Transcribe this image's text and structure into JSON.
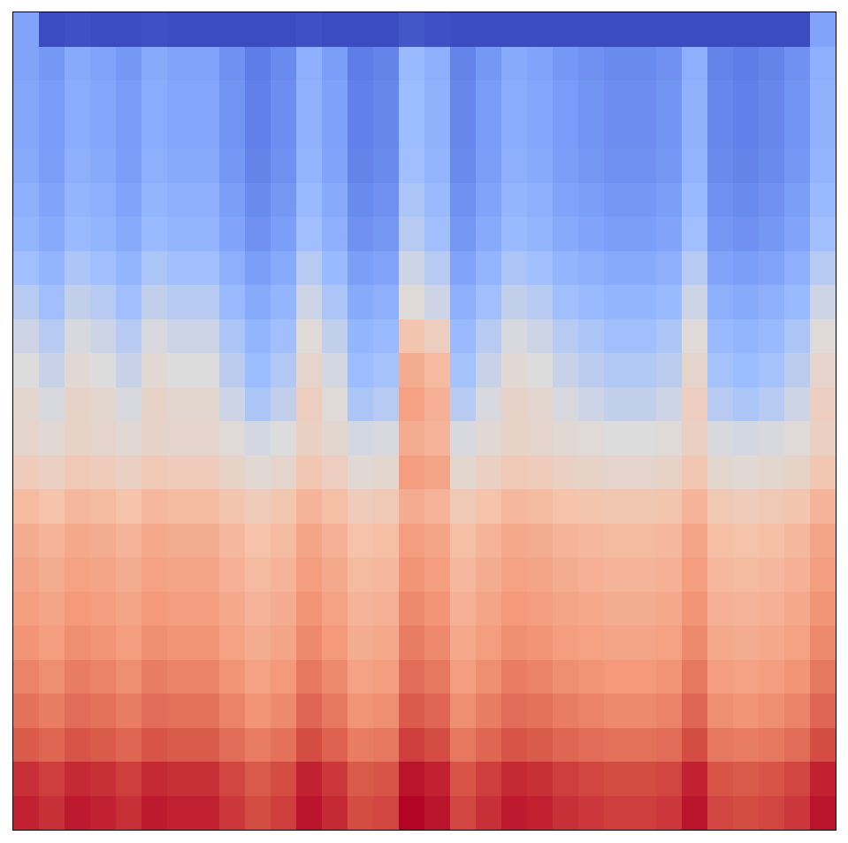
{
  "chart_data": {
    "type": "heatmap",
    "tick_labels": false,
    "z": [
      [
        93,
        91,
        94,
        93,
        91,
        94,
        93,
        93,
        90,
        87,
        89,
        95,
        92,
        87,
        88,
        97,
        95,
        88,
        91,
        94,
        93,
        91,
        90,
        89,
        89,
        90,
        95,
        88,
        87,
        88,
        90,
        95
      ],
      [
        91,
        89,
        92,
        91,
        89,
        92,
        91,
        91,
        88,
        85,
        87,
        93,
        90,
        85,
        86,
        95,
        93,
        86,
        89,
        92,
        91,
        89,
        88,
        87,
        87,
        88,
        93,
        86,
        85,
        86,
        88,
        93
      ],
      [
        85,
        83,
        86,
        85,
        83,
        86,
        85,
        85,
        82,
        79,
        81,
        87,
        84,
        79,
        80,
        89,
        87,
        80,
        83,
        86,
        85,
        83,
        82,
        81,
        81,
        82,
        87,
        80,
        79,
        80,
        82,
        87
      ],
      [
        81,
        79,
        82,
        81,
        79,
        82,
        81,
        81,
        78,
        75,
        77,
        83,
        80,
        75,
        76,
        85,
        83,
        76,
        79,
        82,
        81,
        79,
        78,
        77,
        77,
        78,
        83,
        76,
        75,
        76,
        78,
        83
      ],
      [
        78,
        76,
        79,
        78,
        76,
        79,
        78,
        78,
        75,
        72,
        74,
        80,
        77,
        72,
        73,
        82,
        80,
        73,
        76,
        79,
        78,
        76,
        75,
        74,
        74,
        75,
        80,
        73,
        72,
        73,
        75,
        80
      ],
      [
        75,
        73,
        76,
        75,
        73,
        76,
        75,
        75,
        72,
        69,
        71,
        77,
        74,
        69,
        70,
        79,
        77,
        70,
        73,
        76,
        75,
        73,
        72,
        71,
        71,
        72,
        77,
        70,
        69,
        70,
        72,
        77
      ],
      [
        73,
        71,
        74,
        73,
        71,
        74,
        73,
        73,
        70,
        67,
        69,
        75,
        72,
        67,
        68,
        77,
        75,
        68,
        71,
        74,
        73,
        71,
        70,
        69,
        69,
        70,
        75,
        68,
        67,
        68,
        70,
        75
      ],
      [
        71,
        69,
        72,
        71,
        69,
        72,
        71,
        71,
        68,
        65,
        67,
        73,
        70,
        65,
        66,
        75,
        73,
        66,
        69,
        72,
        71,
        69,
        68,
        67,
        67,
        68,
        73,
        66,
        65,
        66,
        68,
        73
      ],
      [
        69,
        67,
        70,
        69,
        67,
        70,
        69,
        69,
        66,
        63,
        65,
        71,
        68,
        63,
        64,
        73,
        71,
        64,
        67,
        70,
        69,
        67,
        66,
        65,
        65,
        66,
        71,
        64,
        63,
        64,
        66,
        71
      ],
      [
        65,
        63,
        66,
        65,
        63,
        66,
        65,
        65,
        62,
        59,
        61,
        67,
        64,
        59,
        60,
        69,
        67,
        60,
        63,
        66,
        65,
        63,
        62,
        61,
        61,
        62,
        67,
        60,
        59,
        60,
        62,
        67
      ],
      [
        59,
        57,
        60,
        59,
        57,
        60,
        59,
        59,
        56,
        53,
        55,
        61,
        58,
        53,
        54,
        73,
        71,
        54,
        57,
        60,
        59,
        57,
        56,
        55,
        55,
        56,
        61,
        54,
        53,
        54,
        56,
        61
      ],
      [
        55,
        53,
        56,
        55,
        53,
        56,
        55,
        55,
        52,
        49,
        51,
        57,
        54,
        49,
        50,
        69,
        67,
        50,
        53,
        56,
        55,
        53,
        52,
        51,
        51,
        52,
        57,
        50,
        49,
        50,
        52,
        57
      ],
      [
        54,
        50,
        56,
        54,
        50,
        56,
        54,
        54,
        48,
        42,
        46,
        58,
        52,
        42,
        44,
        72,
        68,
        44,
        50,
        56,
        54,
        50,
        48,
        46,
        46,
        48,
        58,
        44,
        42,
        44,
        48,
        58
      ],
      [
        51,
        47,
        53,
        51,
        47,
        53,
        51,
        51,
        45,
        39,
        43,
        55,
        49,
        39,
        41,
        69,
        65,
        41,
        47,
        53,
        51,
        47,
        45,
        43,
        43,
        45,
        55,
        41,
        39,
        41,
        45,
        55
      ],
      [
        48,
        44,
        50,
        48,
        44,
        50,
        48,
        48,
        42,
        36,
        40,
        52,
        46,
        36,
        38,
        62,
        58,
        38,
        44,
        50,
        48,
        44,
        42,
        40,
        40,
        42,
        52,
        38,
        36,
        38,
        42,
        52
      ],
      [
        44,
        40,
        46,
        44,
        40,
        46,
        44,
        44,
        38,
        32,
        36,
        48,
        42,
        32,
        34,
        52,
        48,
        34,
        40,
        46,
        44,
        40,
        38,
        36,
        36,
        38,
        48,
        34,
        32,
        34,
        38,
        48
      ],
      [
        40,
        36,
        42,
        40,
        36,
        42,
        40,
        40,
        34,
        28,
        32,
        44,
        38,
        28,
        30,
        48,
        44,
        30,
        36,
        42,
        40,
        36,
        34,
        32,
        32,
        34,
        44,
        30,
        28,
        30,
        34,
        44
      ],
      [
        36,
        32,
        38,
        36,
        32,
        38,
        36,
        36,
        30,
        24,
        28,
        40,
        34,
        24,
        26,
        44,
        40,
        26,
        32,
        38,
        36,
        32,
        30,
        28,
        28,
        30,
        40,
        26,
        24,
        26,
        30,
        40
      ],
      [
        34,
        30,
        36,
        34,
        30,
        36,
        34,
        34,
        28,
        22,
        26,
        38,
        32,
        22,
        24,
        42,
        38,
        24,
        30,
        36,
        34,
        30,
        28,
        26,
        26,
        28,
        38,
        24,
        22,
        24,
        28,
        38
      ],
      [
        32,
        28,
        34,
        32,
        28,
        34,
        32,
        32,
        26,
        20,
        24,
        36,
        30,
        20,
        22,
        40,
        36,
        22,
        28,
        34,
        32,
        28,
        26,
        24,
        24,
        26,
        36,
        22,
        20,
        22,
        26,
        36
      ],
      [
        31,
        27,
        33,
        31,
        27,
        33,
        31,
        31,
        25,
        19,
        23,
        35,
        29,
        19,
        21,
        39,
        35,
        21,
        27,
        33,
        31,
        27,
        25,
        23,
        23,
        25,
        35,
        21,
        19,
        21,
        25,
        35
      ],
      [
        31,
        27,
        33,
        31,
        27,
        33,
        31,
        31,
        25,
        19,
        23,
        35,
        29,
        19,
        21,
        39,
        35,
        21,
        27,
        33,
        31,
        27,
        25,
        23,
        23,
        25,
        35,
        21,
        19,
        21,
        25,
        35
      ],
      [
        30,
        26,
        32,
        30,
        26,
        32,
        30,
        30,
        24,
        18,
        22,
        34,
        28,
        18,
        20,
        38,
        34,
        20,
        26,
        32,
        30,
        26,
        24,
        22,
        22,
        24,
        34,
        20,
        18,
        20,
        24,
        34
      ],
      [
        30,
        5,
        6,
        5,
        5,
        6,
        5,
        5,
        5,
        5,
        5,
        6,
        5,
        5,
        5,
        8,
        6,
        5,
        5,
        5,
        5,
        5,
        5,
        5,
        5,
        5,
        5,
        5,
        5,
        5,
        5,
        30
      ]
    ]
  }
}
